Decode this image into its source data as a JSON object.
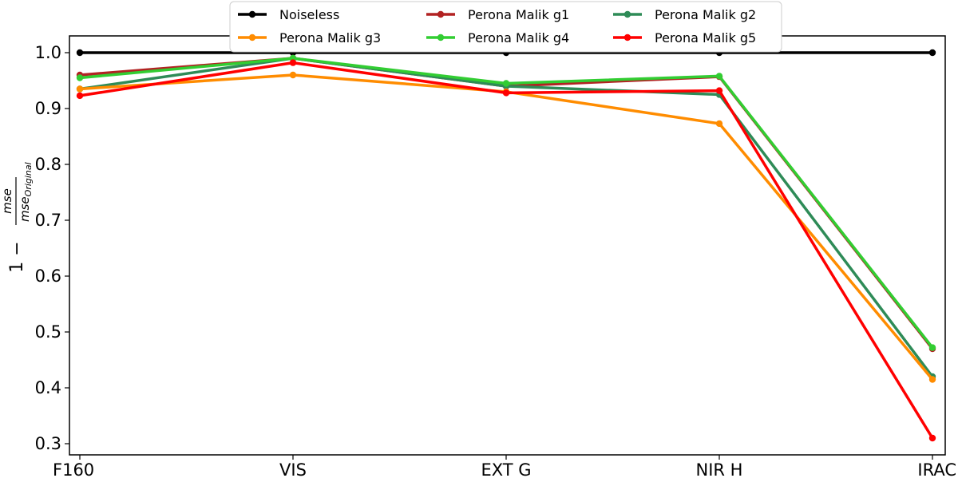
{
  "chart_data": {
    "type": "line",
    "title": "",
    "xlabel": "",
    "ylabel": {
      "prefix": "1 −",
      "numerator": "mse",
      "denominator_base": "mse",
      "denominator_sub": "Original"
    },
    "categories": [
      "F160",
      "VIS",
      "EXT G",
      "NIR H",
      "IRAC"
    ],
    "ylim": [
      0.28,
      1.03
    ],
    "yticks": [
      "0.3",
      "0.4",
      "0.5",
      "0.6",
      "0.7",
      "0.8",
      "0.9",
      "1.0"
    ],
    "legend_position": "top-center",
    "grid": false,
    "series": [
      {
        "name": "Noiseless",
        "color": "#000000",
        "values": [
          1.0,
          1.0,
          1.0,
          1.0,
          1.0
        ]
      },
      {
        "name": "Perona Malik g1",
        "color": "#b22222",
        "values": [
          0.96,
          0.99,
          0.94,
          0.957,
          0.47
        ]
      },
      {
        "name": "Perona Malik g2",
        "color": "#2e8b57",
        "values": [
          0.935,
          0.99,
          0.94,
          0.925,
          0.42
        ]
      },
      {
        "name": "Perona Malik g3",
        "color": "#ff8c00",
        "values": [
          0.935,
          0.96,
          0.93,
          0.873,
          0.415
        ]
      },
      {
        "name": "Perona Malik g4",
        "color": "#32cd32",
        "values": [
          0.955,
          0.99,
          0.945,
          0.958,
          0.472
        ]
      },
      {
        "name": "Perona Malik g5",
        "color": "#ff0000",
        "values": [
          0.923,
          0.982,
          0.928,
          0.932,
          0.31
        ]
      }
    ]
  }
}
